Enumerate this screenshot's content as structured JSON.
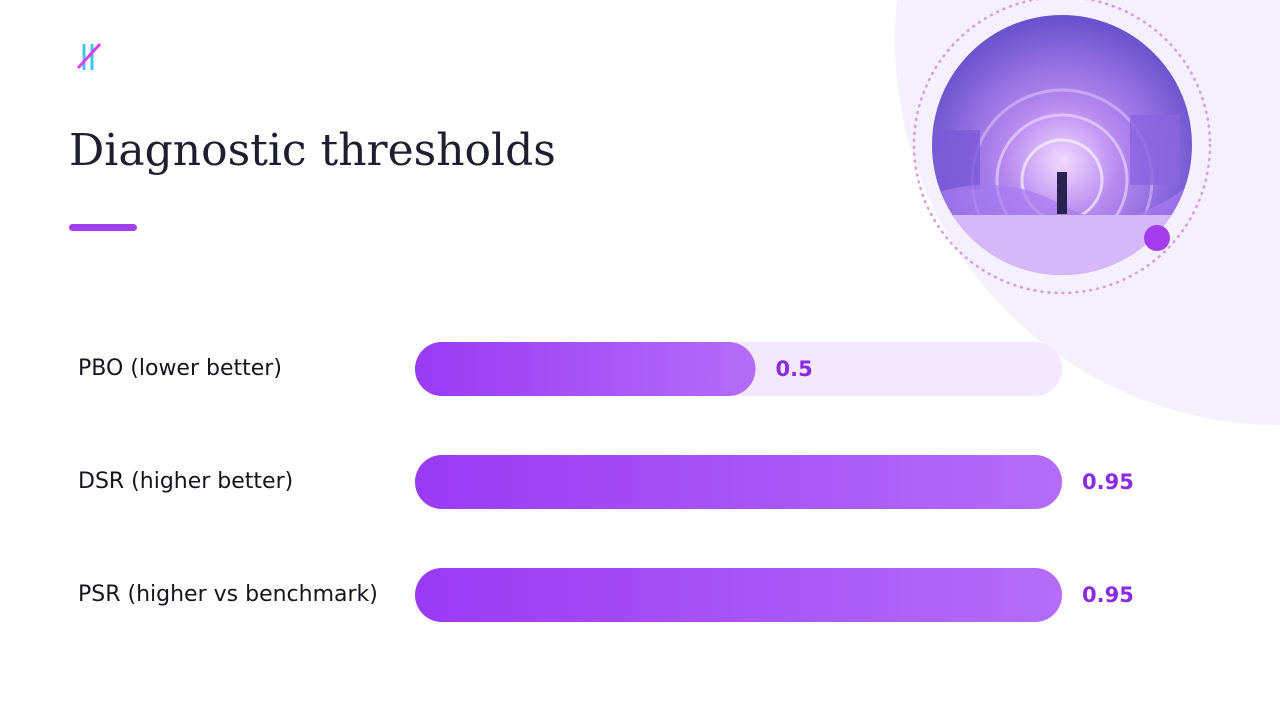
{
  "chart_data": {
    "type": "bar",
    "orientation": "horizontal",
    "title": "Diagnostic thresholds",
    "categories": [
      "PBO (lower better)",
      "DSR (higher better)",
      "PSR (higher vs benchmark)"
    ],
    "values": [
      0.5,
      0.95,
      0.95
    ],
    "color": "#9d3ff6"
  }
}
